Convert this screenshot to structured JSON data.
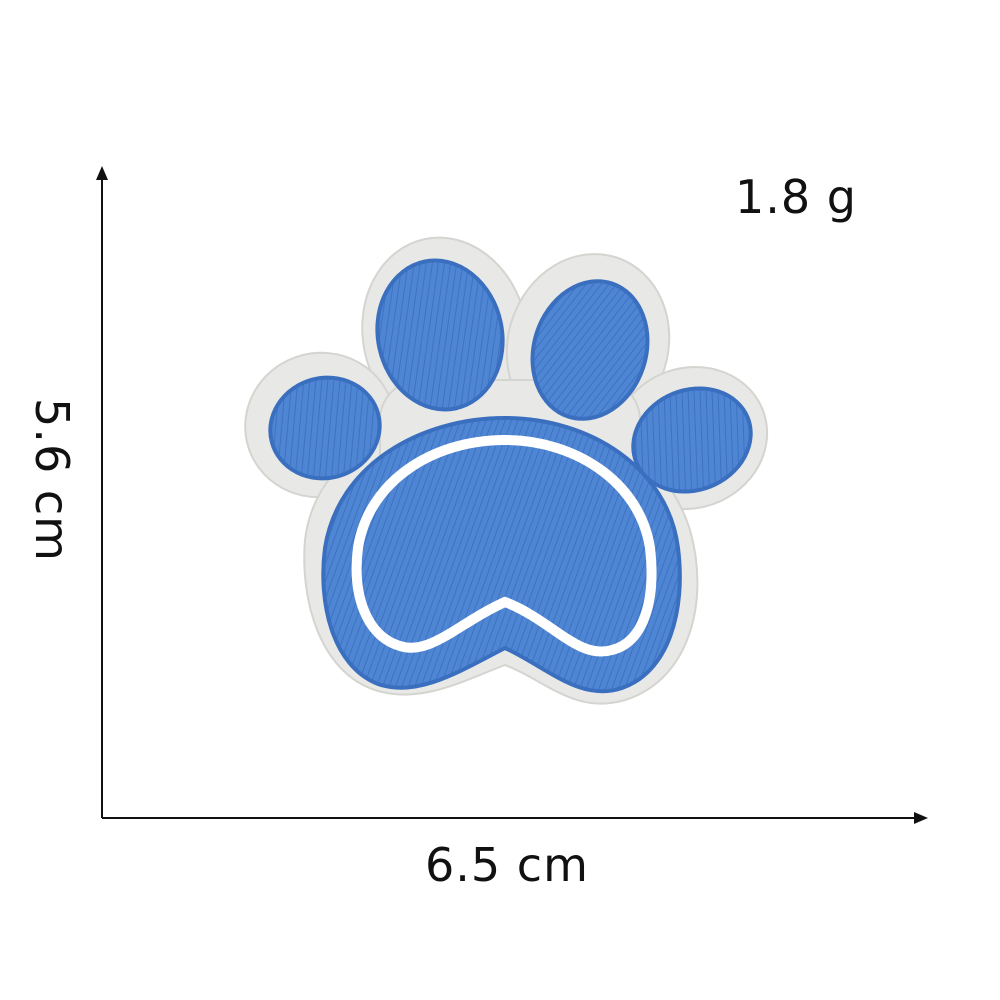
{
  "measurements": {
    "weight": "1.8 g",
    "height": "5.6 cm",
    "width": "6.5 cm"
  },
  "colors": {
    "felt": "#e9e9e7",
    "embroidery_blue": "#4f86d4",
    "embroidery_dark": "#3a6fbf",
    "axis": "#111111"
  },
  "product": {
    "icon": "paw-print-icon"
  }
}
